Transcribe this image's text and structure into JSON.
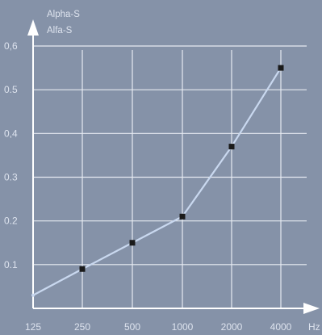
{
  "chart_data": {
    "type": "line",
    "ylabel_lines": [
      "Alpha-S",
      "Alfa-S"
    ],
    "x_unit": "Hz",
    "categories": [
      "125",
      "250",
      "500",
      "1000",
      "2000",
      "4000"
    ],
    "y_ticks": [
      "0.1",
      "0.2",
      "0.3",
      "0,4",
      "0.5",
      "0,6"
    ],
    "y_tick_values": [
      0.1,
      0.2,
      0.3,
      0.4,
      0.5,
      0.6
    ],
    "ylim": [
      0,
      0.6
    ],
    "grid": true,
    "series": [
      {
        "values": [
          0.03,
          0.09,
          0.15,
          0.21,
          0.37,
          0.55
        ]
      }
    ],
    "colors": {
      "background": "#8592a8",
      "grid": "#e6eaf1",
      "axis": "#ffffff",
      "line": "#c9d8ef",
      "marker": "#1a1a1a",
      "text": "#dde3ee"
    }
  }
}
